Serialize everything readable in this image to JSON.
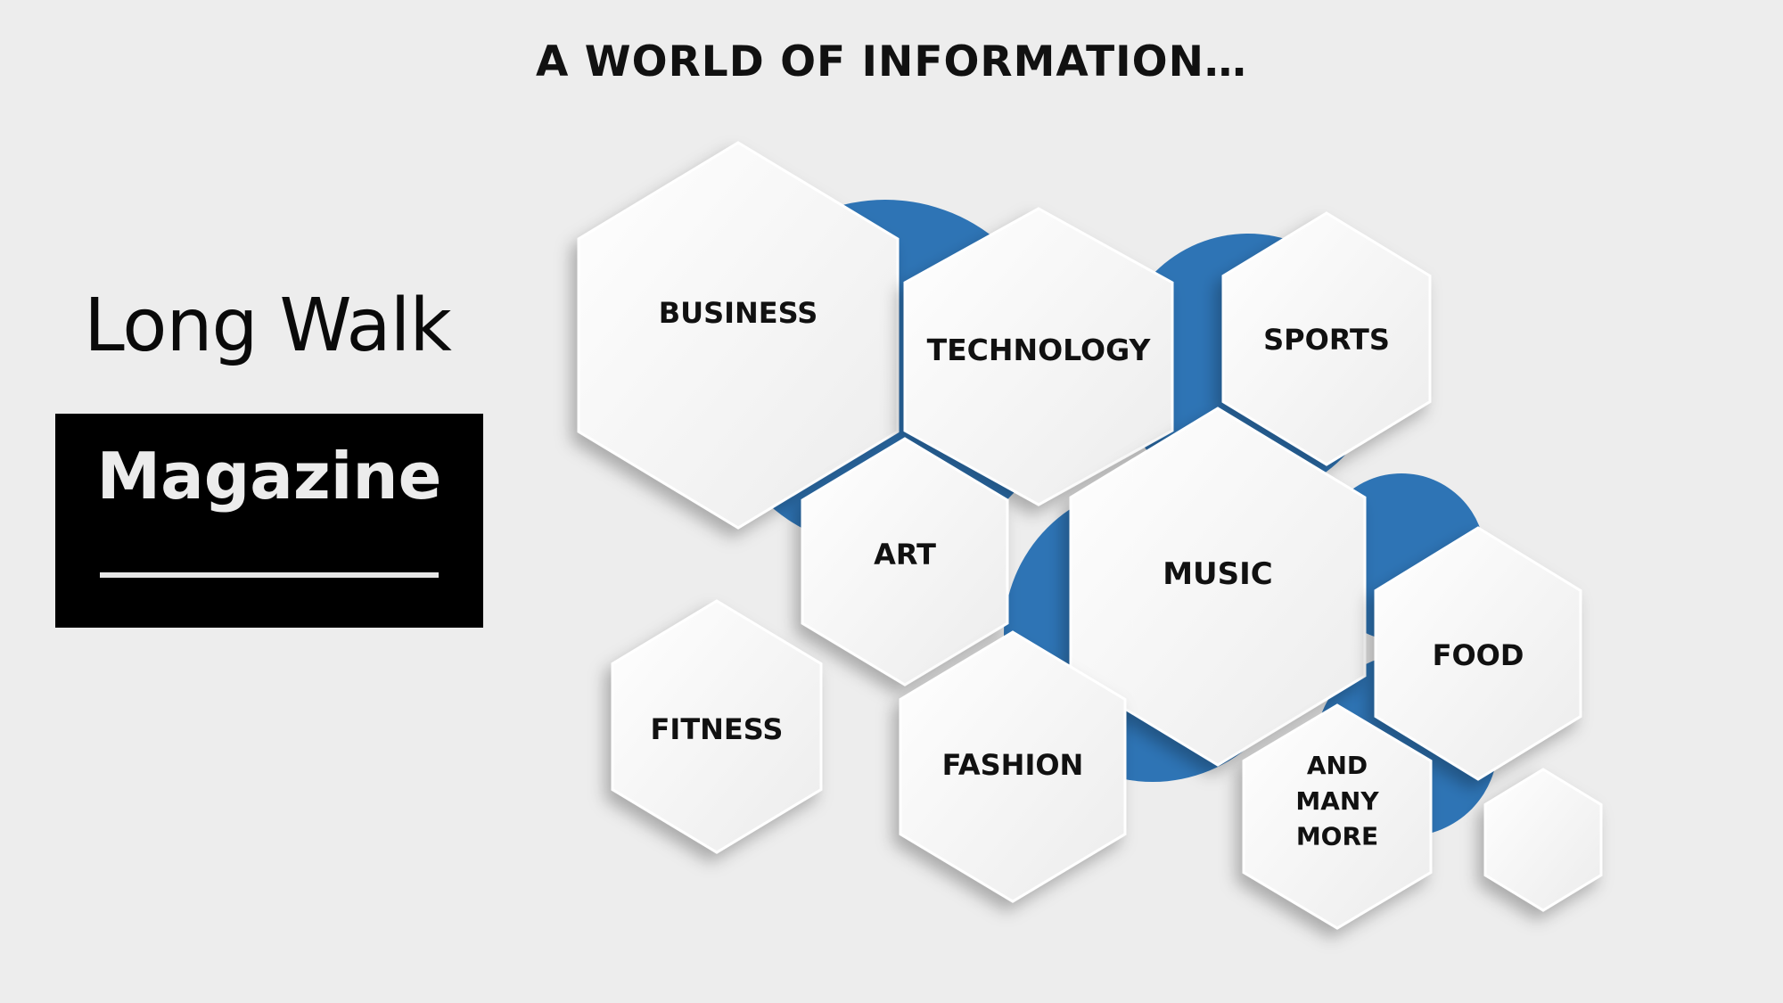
{
  "slide": {
    "headline": "A WORLD OF INFORMATION…",
    "brand_title": "Long Walk",
    "brand_subtitle": "Magazine"
  },
  "colors": {
    "background": "#ededed",
    "accent_blue": "#2e74b5",
    "hex_fill": "#ffffff",
    "brand_box": "#000000"
  },
  "topics": [
    {
      "id": "business",
      "label": "BUSINESS"
    },
    {
      "id": "technology",
      "label": "TECHNOLOGY"
    },
    {
      "id": "sports",
      "label": "SPORTS"
    },
    {
      "id": "art",
      "label": "ART"
    },
    {
      "id": "music",
      "label": "MUSIC"
    },
    {
      "id": "food",
      "label": "FOOD"
    },
    {
      "id": "fitness",
      "label": "FITNESS"
    },
    {
      "id": "fashion",
      "label": "FASHION"
    },
    {
      "id": "and-many-more",
      "label": [
        "AND",
        "MANY",
        "MORE"
      ]
    },
    {
      "id": "blank",
      "label": ""
    }
  ]
}
